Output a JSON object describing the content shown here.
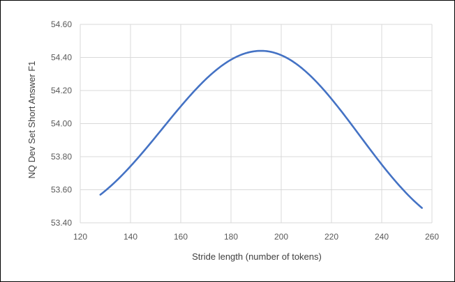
{
  "chart_data": {
    "type": "line",
    "title": "",
    "xlabel": "Stride length (number of tokens)",
    "ylabel": "NQ Dev Set Short Answer F1",
    "xlim": [
      120,
      260
    ],
    "ylim": [
      53.4,
      54.6
    ],
    "x_ticks": [
      "120",
      "140",
      "160",
      "180",
      "200",
      "220",
      "240",
      "260"
    ],
    "y_ticks": [
      "53.40",
      "53.60",
      "53.80",
      "54.00",
      "54.20",
      "54.40",
      "54.60"
    ],
    "grid": true,
    "legend": "none",
    "series": [
      {
        "color": "#4472C4",
        "smooth": true,
        "points": [
          {
            "x": 128,
            "y": 53.57
          },
          {
            "x": 192,
            "y": 54.44
          },
          {
            "x": 256,
            "y": 53.49
          }
        ]
      }
    ]
  }
}
